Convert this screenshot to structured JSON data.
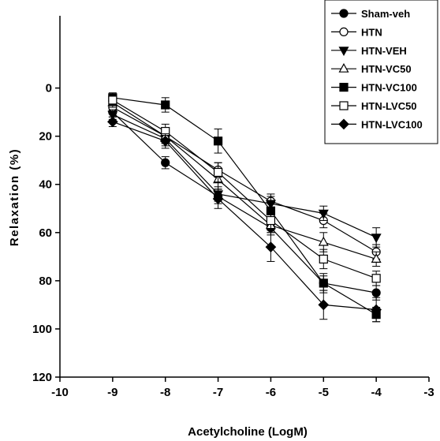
{
  "chart_data": {
    "type": "line",
    "title": "",
    "xlabel": "Acetylcholine (LogM)",
    "ylabel": "Relaxation (%)",
    "xlim": [
      -10,
      -3
    ],
    "ylim": [
      120,
      -30
    ],
    "y_inverted": true,
    "xticks": [
      -10,
      -9,
      -8,
      -7,
      -6,
      -5,
      -4,
      -3
    ],
    "yticks": [
      0,
      20,
      40,
      60,
      80,
      100,
      120
    ],
    "grid": false,
    "legend_position": "top-right",
    "colors": {
      "line": "#000000",
      "background": "#ffffff"
    },
    "x": [
      -9,
      -8,
      -7,
      -6,
      -5,
      -4
    ],
    "series": [
      {
        "name": "Sham-veh",
        "marker": "circle-filled",
        "values": [
          10,
          31,
          45,
          58,
          81,
          85
        ],
        "errors": [
          2,
          2.5,
          3,
          3,
          3,
          3
        ]
      },
      {
        "name": "HTN",
        "marker": "circle-open",
        "values": [
          8,
          20,
          34,
          47,
          55,
          68
        ],
        "errors": [
          2,
          3,
          3,
          3,
          3,
          3
        ]
      },
      {
        "name": "HTN-VEH",
        "marker": "triangle-down-filled",
        "values": [
          11,
          21,
          44,
          48,
          52,
          62
        ],
        "errors": [
          2,
          3,
          3,
          3,
          3,
          4
        ]
      },
      {
        "name": "HTN-VC50",
        "marker": "triangle-up-open",
        "values": [
          6,
          20,
          38,
          57,
          64,
          71
        ],
        "errors": [
          2,
          3,
          4,
          3,
          4,
          3
        ]
      },
      {
        "name": "HTN-VC100",
        "marker": "square-filled",
        "values": [
          4,
          7,
          22,
          51,
          81,
          94
        ],
        "errors": [
          2,
          3,
          5,
          4,
          4,
          3
        ]
      },
      {
        "name": "HTN-LVC50",
        "marker": "square-open",
        "values": [
          5,
          18,
          35,
          55,
          71,
          79
        ],
        "errors": [
          2,
          3,
          4,
          4,
          4,
          3
        ]
      },
      {
        "name": "HTN-LVC100",
        "marker": "diamond-filled",
        "values": [
          14,
          22,
          46,
          66,
          90,
          92
        ],
        "errors": [
          2,
          3,
          4,
          6,
          6,
          5
        ]
      }
    ]
  }
}
